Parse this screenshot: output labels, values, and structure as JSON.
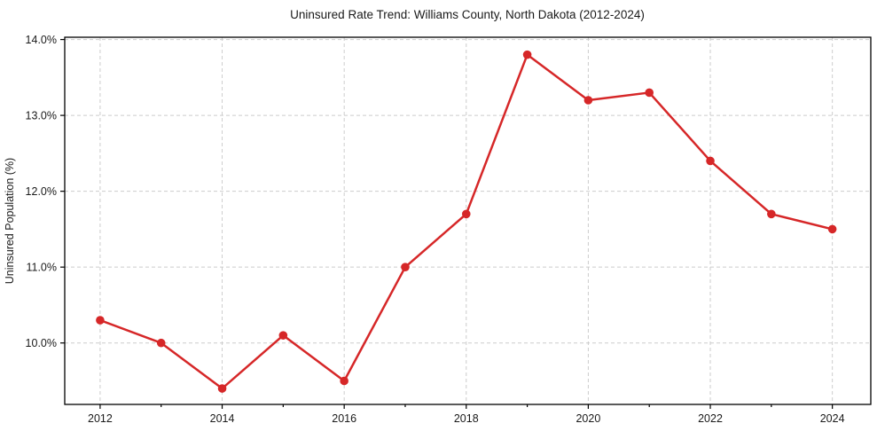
{
  "chart_data": {
    "type": "line",
    "title": "Uninsured Rate Trend: Williams County, North Dakota (2012-2024)",
    "xlabel": "",
    "ylabel": "Uninsured Population (%)",
    "x": [
      2012,
      2013,
      2014,
      2015,
      2016,
      2017,
      2018,
      2019,
      2020,
      2021,
      2022,
      2023,
      2024
    ],
    "values": [
      10.3,
      10.0,
      9.4,
      10.1,
      9.5,
      11.0,
      11.7,
      13.8,
      13.2,
      13.3,
      12.4,
      11.7,
      11.5
    ],
    "xlim": [
      2011.42,
      2024.63
    ],
    "ylim": [
      9.19,
      14.03
    ],
    "x_major_ticks": [
      2012,
      2014,
      2016,
      2018,
      2020,
      2022,
      2024
    ],
    "x_tick_labels": [
      "2012",
      "2014",
      "2016",
      "2018",
      "2020",
      "2022",
      "2024"
    ],
    "x_minor_ticks": [
      2013,
      2015,
      2017,
      2019,
      2021,
      2023
    ],
    "y_ticks": [
      10,
      11,
      12,
      13,
      14
    ],
    "y_tick_labels": [
      "10.0%",
      "11.0%",
      "12.0%",
      "13.0%",
      "14.0%"
    ],
    "grid": true,
    "legend": "none",
    "marker": "circle",
    "line_color": "#d62728",
    "grid_color": "#cccccc",
    "axis_color": "#000000",
    "text_color": "#1a1a1a",
    "background": "#ffffff"
  }
}
